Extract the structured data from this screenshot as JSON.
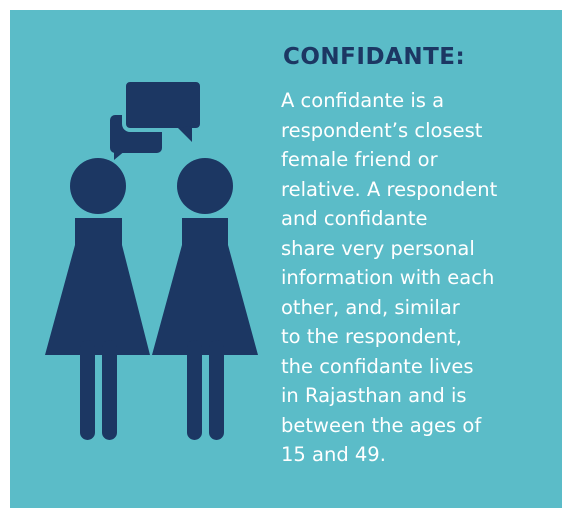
{
  "title": "CONFIDANTE:",
  "body_lines": [
    "A confidante is a",
    "respondent’s closest",
    "female friend or",
    "relative. A respondent",
    "and confidante",
    "share very personal",
    "information with each",
    "other, and, similar",
    "to the respondent,",
    "the confidante lives",
    "in Rajasthan and is",
    "between the ages of",
    "15 and 49."
  ]
}
